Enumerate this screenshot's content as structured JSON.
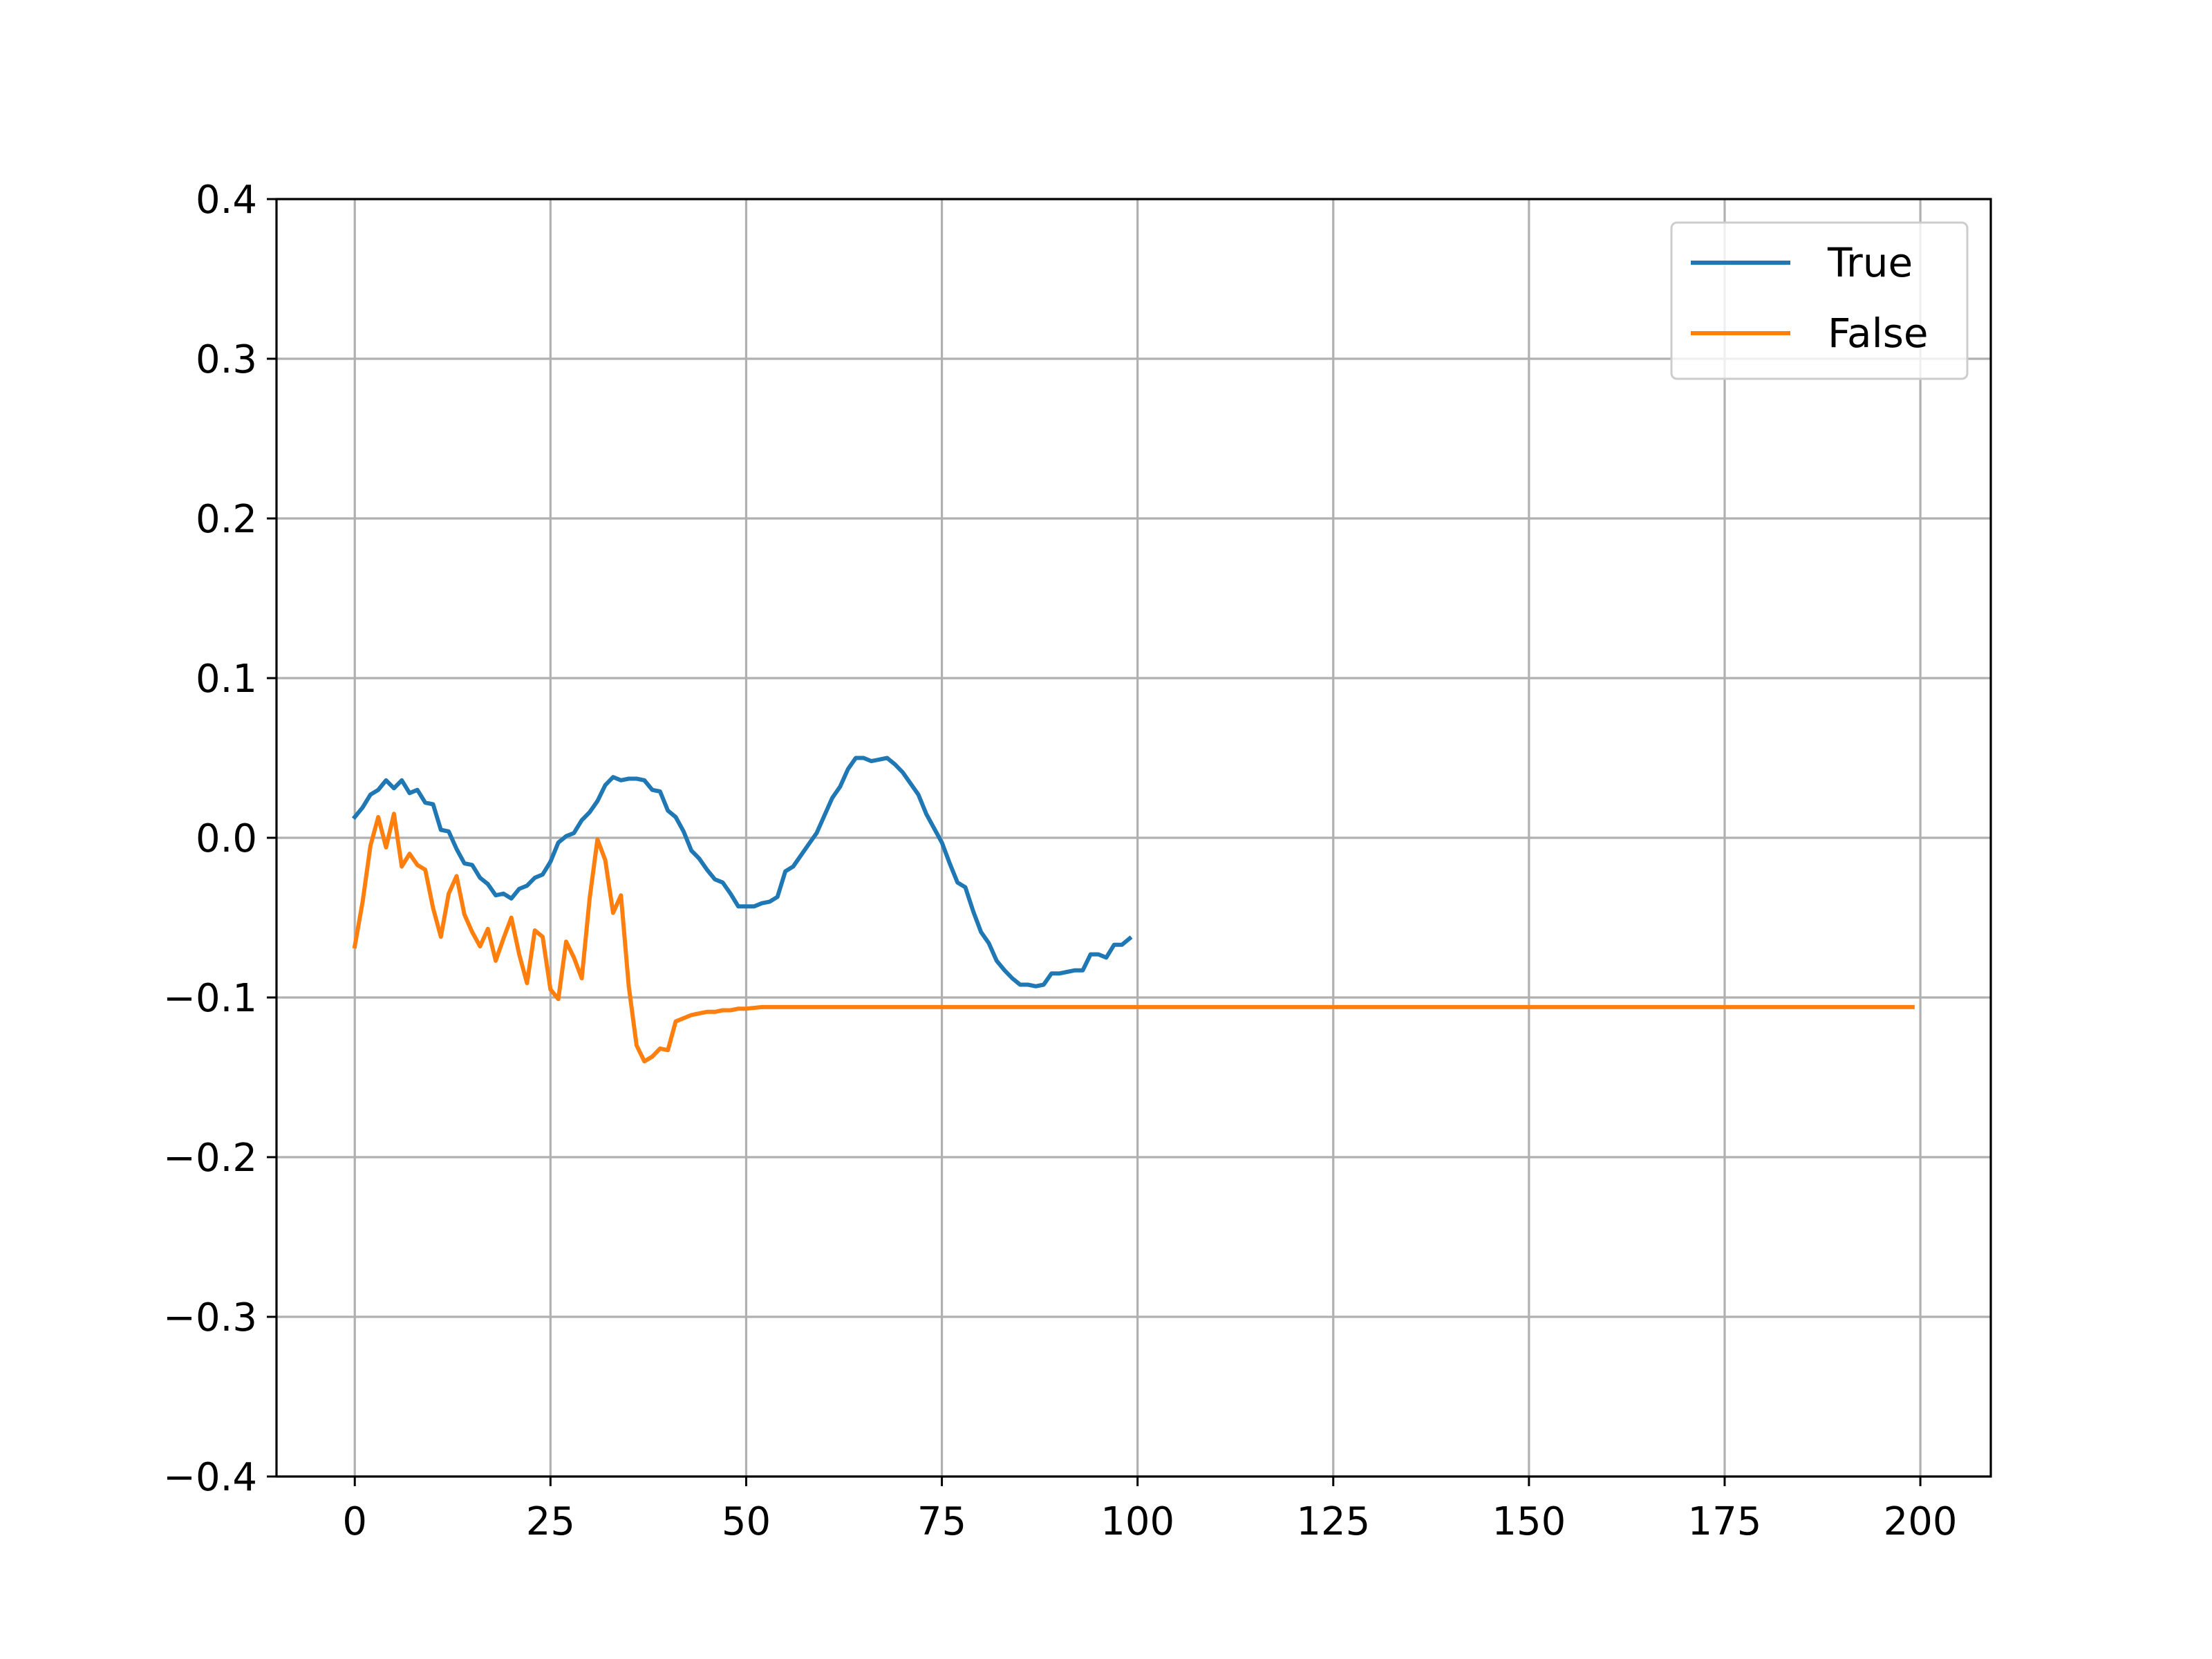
{
  "chart_data": {
    "type": "line",
    "title": "",
    "xlabel": "",
    "ylabel": "",
    "xlim": [
      -10,
      209
    ],
    "ylim": [
      -0.4,
      0.4
    ],
    "x_ticks": [
      0,
      25,
      50,
      75,
      100,
      125,
      150,
      175,
      200
    ],
    "x_tick_labels": [
      "0",
      "25",
      "50",
      "75",
      "100",
      "125",
      "150",
      "175",
      "200"
    ],
    "y_ticks": [
      -0.4,
      -0.3,
      -0.2,
      -0.1,
      0.0,
      0.1,
      0.2,
      0.3,
      0.4
    ],
    "y_tick_labels": [
      "−0.4",
      "−0.3",
      "−0.2",
      "−0.1",
      "0.0",
      "0.1",
      "0.2",
      "0.3",
      "0.4"
    ],
    "grid": true,
    "legend_position": "top-right",
    "series": [
      {
        "name": "True",
        "color": "#1f77b4",
        "points": [
          [
            0,
            0.013
          ],
          [
            1,
            0.019
          ],
          [
            2,
            0.027
          ],
          [
            3,
            0.03
          ],
          [
            4,
            0.036
          ],
          [
            5,
            0.031
          ],
          [
            6,
            0.036
          ],
          [
            7,
            0.028
          ],
          [
            8,
            0.03
          ],
          [
            9,
            0.022
          ],
          [
            10,
            0.021
          ],
          [
            11,
            0.005
          ],
          [
            12,
            0.004
          ],
          [
            13,
            -0.007
          ],
          [
            14,
            -0.016
          ],
          [
            15,
            -0.017
          ],
          [
            16,
            -0.025
          ],
          [
            17,
            -0.029
          ],
          [
            18,
            -0.036
          ],
          [
            19,
            -0.035
          ],
          [
            20,
            -0.038
          ],
          [
            21,
            -0.032
          ],
          [
            22,
            -0.03
          ],
          [
            23,
            -0.025
          ],
          [
            24,
            -0.023
          ],
          [
            25,
            -0.015
          ],
          [
            26,
            -0.003
          ],
          [
            27,
            0.001
          ],
          [
            28,
            0.003
          ],
          [
            29,
            0.011
          ],
          [
            30,
            0.016
          ],
          [
            31,
            0.023
          ],
          [
            32,
            0.033
          ],
          [
            33,
            0.038
          ],
          [
            34,
            0.036
          ],
          [
            35,
            0.037
          ],
          [
            36,
            0.037
          ],
          [
            37,
            0.036
          ],
          [
            38,
            0.03
          ],
          [
            39,
            0.029
          ],
          [
            40,
            0.017
          ],
          [
            41,
            0.013
          ],
          [
            42,
            0.004
          ],
          [
            43,
            -0.008
          ],
          [
            44,
            -0.013
          ],
          [
            45,
            -0.02
          ],
          [
            46,
            -0.026
          ],
          [
            47,
            -0.028
          ],
          [
            48,
            -0.035
          ],
          [
            49,
            -0.043
          ],
          [
            50,
            -0.043
          ],
          [
            51,
            -0.043
          ],
          [
            52,
            -0.041
          ],
          [
            53,
            -0.04
          ],
          [
            54,
            -0.037
          ],
          [
            55,
            -0.021
          ],
          [
            56,
            -0.018
          ],
          [
            57,
            -0.011
          ],
          [
            58,
            -0.004
          ],
          [
            59,
            0.003
          ],
          [
            60,
            0.014
          ],
          [
            61,
            0.025
          ],
          [
            62,
            0.032
          ],
          [
            63,
            0.043
          ],
          [
            64,
            0.05
          ],
          [
            65,
            0.05
          ],
          [
            66,
            0.048
          ],
          [
            67,
            0.049
          ],
          [
            68,
            0.05
          ],
          [
            69,
            0.046
          ],
          [
            70,
            0.041
          ],
          [
            71,
            0.034
          ],
          [
            72,
            0.027
          ],
          [
            73,
            0.015
          ],
          [
            74,
            0.006
          ],
          [
            75,
            -0.003
          ],
          [
            76,
            -0.016
          ],
          [
            77,
            -0.028
          ],
          [
            78,
            -0.031
          ],
          [
            79,
            -0.046
          ],
          [
            80,
            -0.059
          ],
          [
            81,
            -0.066
          ],
          [
            82,
            -0.077
          ],
          [
            83,
            -0.083
          ],
          [
            84,
            -0.088
          ],
          [
            85,
            -0.092
          ],
          [
            86,
            -0.092
          ],
          [
            87,
            -0.093
          ],
          [
            88,
            -0.092
          ],
          [
            89,
            -0.085
          ],
          [
            90,
            -0.085
          ],
          [
            91,
            -0.084
          ],
          [
            92,
            -0.083
          ],
          [
            93,
            -0.083
          ],
          [
            94,
            -0.073
          ],
          [
            95,
            -0.073
          ],
          [
            96,
            -0.075
          ],
          [
            97,
            -0.067
          ],
          [
            98,
            -0.067
          ],
          [
            99,
            -0.063
          ]
        ]
      },
      {
        "name": "False",
        "color": "#ff7f0e",
        "points": [
          [
            0,
            -0.068
          ],
          [
            1,
            -0.04
          ],
          [
            2,
            -0.005
          ],
          [
            3,
            0.013
          ],
          [
            4,
            -0.006
          ],
          [
            5,
            0.015
          ],
          [
            6,
            -0.018
          ],
          [
            7,
            -0.01
          ],
          [
            8,
            -0.017
          ],
          [
            9,
            -0.02
          ],
          [
            10,
            -0.044
          ],
          [
            11,
            -0.062
          ],
          [
            12,
            -0.035
          ],
          [
            13,
            -0.024
          ],
          [
            14,
            -0.048
          ],
          [
            15,
            -0.059
          ],
          [
            16,
            -0.068
          ],
          [
            17,
            -0.057
          ],
          [
            18,
            -0.077
          ],
          [
            19,
            -0.063
          ],
          [
            20,
            -0.05
          ],
          [
            21,
            -0.073
          ],
          [
            22,
            -0.091
          ],
          [
            23,
            -0.058
          ],
          [
            24,
            -0.062
          ],
          [
            25,
            -0.095
          ],
          [
            26,
            -0.101
          ],
          [
            27,
            -0.065
          ],
          [
            28,
            -0.075
          ],
          [
            29,
            -0.088
          ],
          [
            30,
            -0.038
          ],
          [
            31,
            -0.001
          ],
          [
            32,
            -0.014
          ],
          [
            33,
            -0.047
          ],
          [
            34,
            -0.036
          ],
          [
            35,
            -0.093
          ],
          [
            36,
            -0.13
          ],
          [
            37,
            -0.14
          ],
          [
            38,
            -0.137
          ],
          [
            39,
            -0.132
          ],
          [
            40,
            -0.133
          ],
          [
            41,
            -0.115
          ],
          [
            42,
            -0.113
          ],
          [
            43,
            -0.111
          ],
          [
            44,
            -0.11
          ],
          [
            45,
            -0.109
          ],
          [
            46,
            -0.109
          ],
          [
            47,
            -0.108
          ],
          [
            48,
            -0.108
          ],
          [
            49,
            -0.107
          ],
          [
            50,
            -0.107
          ],
          [
            52,
            -0.106
          ],
          [
            60,
            -0.106
          ],
          [
            80,
            -0.106
          ],
          [
            100,
            -0.106
          ],
          [
            120,
            -0.106
          ],
          [
            140,
            -0.106
          ],
          [
            160,
            -0.106
          ],
          [
            180,
            -0.106
          ],
          [
            199,
            -0.106
          ]
        ]
      }
    ]
  }
}
